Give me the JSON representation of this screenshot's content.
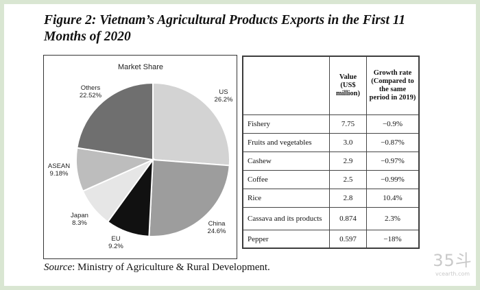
{
  "figure": {
    "title": "Figure 2: Vietnam’s Agricultural Products Exports in the First 11 Months of 2020"
  },
  "chart_data": {
    "type": "pie",
    "title": "Market Share",
    "slices": [
      {
        "label": "US",
        "value": 26.2,
        "display": "26.2%",
        "color": "#d3d3d3"
      },
      {
        "label": "China",
        "value": 24.6,
        "display": "24.6%",
        "color": "#9d9d9d"
      },
      {
        "label": "EU",
        "value": 9.2,
        "display": "9.2%",
        "color": "#111111"
      },
      {
        "label": "Japan",
        "value": 8.3,
        "display": "8.3%",
        "color": "#e6e6e6"
      },
      {
        "label": "ASEAN",
        "value": 9.18,
        "display": "9.18%",
        "color": "#bdbdbd"
      },
      {
        "label": "Others",
        "value": 22.52,
        "display": "22.52%",
        "color": "#6f6f6f"
      }
    ]
  },
  "table": {
    "headers": [
      "",
      "Value (US$ million)",
      "Growth rate (Compared to the same period in 2019)"
    ],
    "rows": [
      {
        "product": "Fishery",
        "value": "7.75",
        "growth": "−0.9%"
      },
      {
        "product": "Fruits and vegetables",
        "value": "3.0",
        "growth": "−0.87%"
      },
      {
        "product": "Cashew",
        "value": "2.9",
        "growth": "−0.97%"
      },
      {
        "product": "Coffee",
        "value": "2.5",
        "growth": "−0.99%"
      },
      {
        "product": "Rice",
        "value": "2.8",
        "growth": "10.4%"
      },
      {
        "product": "Cassava and its products",
        "value": "0.874",
        "growth": "2.3%"
      },
      {
        "product": "Pepper",
        "value": "0.597",
        "growth": "−18%"
      }
    ]
  },
  "source": {
    "label": "Source",
    "text": ": Ministry of Agriculture & Rural Development."
  },
  "watermark": {
    "logo": "35斗",
    "site": "vcearth.com"
  }
}
